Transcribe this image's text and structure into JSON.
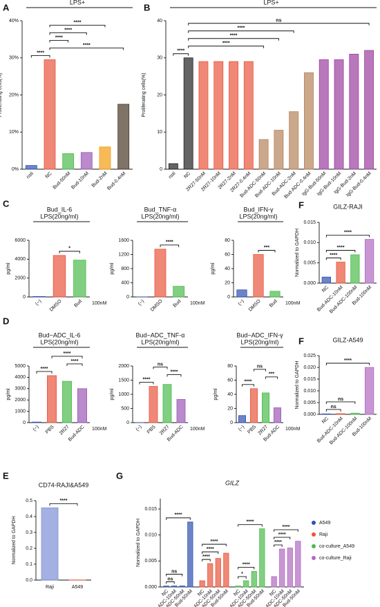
{
  "chart_data": [
    {
      "type": "bar",
      "panel": "A",
      "subtitle": "LPS+",
      "ylabel": "Proliferating cells(%)",
      "categories": [
        "nsti",
        "NC",
        "Bud-50nM",
        "Bud-10nM",
        "Bud-2nM",
        "Bud-0.4nM"
      ],
      "values": [
        1,
        29.5,
        4.2,
        4.5,
        6,
        17.5
      ],
      "colors": [
        "#3050b0",
        "#e8553c",
        "#4cbb4c",
        "#9b59b6",
        "#f39c12",
        "#4a3728"
      ],
      "ylim": [
        0,
        40
      ],
      "yticks": [
        {
          "value": 0,
          "label": "0%"
        },
        {
          "value": 10,
          "label": "10%"
        },
        {
          "value": 20,
          "label": "20%"
        },
        {
          "value": 30,
          "label": "30%"
        },
        {
          "value": 40,
          "label": "40%"
        }
      ],
      "brackets": [
        {
          "label": "****",
          "from": "nsti",
          "to": "NC"
        },
        {
          "label": "****",
          "from": "NC",
          "to": "Bud-0.4nM"
        },
        {
          "label": "****",
          "from": "NC",
          "to": "Bud-50nM"
        },
        {
          "label": "****",
          "from": "NC",
          "to": "Bud-10nM"
        },
        {
          "label": "****",
          "from": "NC",
          "to": "Bud-2nM"
        }
      ]
    },
    {
      "type": "bar",
      "panel": "B",
      "subtitle": "LPS+",
      "ylabel": "Proliferating cells(%)",
      "categories": [
        "nsti",
        "NC",
        "2R27-50nM",
        "2R27-10nM",
        "2R27-2nM",
        "2R27-0.4nM",
        "Bud-ADC-50nM",
        "Bud-ADC-10nM",
        "Bud-ADC-2nM",
        "Bud-ADC-0.4nM",
        "IgG-Bud-50nM",
        "IgG-Bud-10nM",
        "IgG-Bud-2nM",
        "IgG-Bud-0.4nM"
      ],
      "values": [
        1.5,
        30,
        29,
        29,
        29,
        29,
        8,
        10.5,
        15.5,
        26,
        29.5,
        29.5,
        31,
        32
      ],
      "colors": [
        "#222222",
        "#222222",
        "#e8553c",
        "#e8553c",
        "#e8553c",
        "#e8553c",
        "#b5835a",
        "#b5835a",
        "#b5835a",
        "#b5835a",
        "#9b3fa0",
        "#9b3fa0",
        "#9b3fa0",
        "#9b3fa0"
      ],
      "ylim": [
        0,
        40
      ],
      "yticks": [
        0,
        10,
        20,
        30,
        40
      ],
      "brackets": [
        {
          "label": "****",
          "from": "nsti",
          "to": "NC"
        },
        {
          "label": "****",
          "from": "NC",
          "to": "Bud-ADC-50nM"
        },
        {
          "label": "****",
          "from": "NC",
          "to": "Bud-ADC-10nM"
        },
        {
          "label": "****",
          "from": "NC",
          "to": "Bud-ADC-2nM"
        },
        {
          "label": "ns",
          "from": "NC",
          "to": "IgG-Bud-0.4nM"
        }
      ]
    },
    {
      "type": "bar",
      "panel": "C",
      "title": "Bud_IL-6",
      "subtitle": "LPS(20ng/ml)",
      "ylabel": "pg/ml",
      "note": "100nM",
      "categories": [
        "(−)",
        "DMSO",
        "Bud"
      ],
      "values": [
        50,
        4400,
        3900
      ],
      "colors": [
        "#3050b0",
        "#e8553c",
        "#4cbb4c"
      ],
      "ylim": [
        0,
        6000
      ],
      "yticks": [
        0,
        2000,
        4000,
        6000
      ],
      "brackets": [
        {
          "label": "*",
          "from": "DMSO",
          "to": "Bud"
        }
      ]
    },
    {
      "type": "bar",
      "title": "Bud_TNF-α",
      "subtitle": "LPS(20ng/ml)",
      "ylabel": "pg/ml",
      "note": "100nM",
      "categories": [
        "(−)",
        "DMSO",
        "Bud"
      ],
      "values": [
        0,
        1350,
        300
      ],
      "colors": [
        "#3050b0",
        "#e8553c",
        "#4cbb4c"
      ],
      "ylim": [
        0,
        1600
      ],
      "yticks": [
        0,
        400,
        800,
        1200,
        1600
      ],
      "brackets": [
        {
          "label": "****",
          "from": "DMSO",
          "to": "Bud"
        }
      ]
    },
    {
      "type": "bar",
      "title": "Bud_IFN-γ",
      "subtitle": "LPS(20ng/ml)",
      "ylabel": "pg/ml",
      "note": "100nM",
      "categories": [
        "(−)",
        "DMSO",
        "Bud"
      ],
      "values": [
        10,
        60,
        8
      ],
      "colors": [
        "#3050b0",
        "#e8553c",
        "#4cbb4c"
      ],
      "ylim": [
        0,
        80
      ],
      "yticks": [
        0,
        20,
        40,
        60,
        80
      ],
      "brackets": [
        {
          "label": "***",
          "from": "DMSO",
          "to": "Bud"
        }
      ]
    },
    {
      "type": "bar",
      "panel": "F",
      "title": "GILZ-RAJI",
      "ylabel": "Normalized to GAPDH",
      "categories": [
        "NC",
        "Bud-ADC-10nM",
        "Bud-ADC-100nM",
        "Bud-100nM"
      ],
      "values": [
        0.0015,
        0.0052,
        0.007,
        0.0108
      ],
      "colors": [
        "#3050b0",
        "#e8553c",
        "#4cbb4c",
        "#b06ac0"
      ],
      "ylim": [
        0,
        0.015
      ],
      "yticks": [
        {
          "value": 0,
          "label": "0.000"
        },
        {
          "value": 0.005,
          "label": "0.005"
        },
        {
          "value": 0.01,
          "label": "0.010"
        },
        {
          "value": 0.015,
          "label": "0.015"
        }
      ],
      "brackets": [
        {
          "label": "****",
          "from": "NC",
          "to": "Bud-ADC-10nM"
        },
        {
          "label": "****",
          "from": "NC",
          "to": "Bud-ADC-100nM"
        },
        {
          "label": "****",
          "from": "NC",
          "to": "Bud-100nM"
        }
      ]
    },
    {
      "type": "bar",
      "panel": "D",
      "title": "Bud−ADC_IL-6",
      "subtitle": "LPS(20ng/ml)",
      "ylabel": "pg/ml",
      "note": "100nM",
      "categories": [
        "(−)",
        "PBS",
        "2R27",
        "Bud-ADC"
      ],
      "values": [
        50,
        4150,
        3650,
        3000
      ],
      "colors": [
        "#3050b0",
        "#e8553c",
        "#4cbb4c",
        "#9b59b6"
      ],
      "ylim": [
        0,
        5000
      ],
      "yticks": [
        0,
        1000,
        2000,
        3000,
        4000,
        5000
      ],
      "brackets": [
        {
          "label": "****",
          "from": "(−)",
          "to": "PBS"
        },
        {
          "label": "****",
          "from": "2R27",
          "to": "Bud-ADC"
        },
        {
          "label": "****",
          "from": "PBS",
          "to": "Bud-ADC"
        }
      ]
    },
    {
      "type": "bar",
      "title": "Bud−ADC_TNF-α",
      "subtitle": "LPS(20ng/ml)",
      "ylabel": "pg/ml",
      "note": "100nM",
      "categories": [
        "(−)",
        "PBS",
        "2R27",
        "Bud-ADC"
      ],
      "values": [
        0,
        1280,
        1350,
        820
      ],
      "colors": [
        "#3050b0",
        "#e8553c",
        "#4cbb4c",
        "#9b59b6"
      ],
      "ylim": [
        0,
        2000
      ],
      "yticks": [
        0,
        500,
        1000,
        1500,
        2000
      ],
      "brackets": [
        {
          "label": "****",
          "from": "(−)",
          "to": "PBS"
        },
        {
          "label": "****",
          "from": "2R27",
          "to": "Bud-ADC"
        },
        {
          "label": "ns",
          "from": "PBS",
          "to": "2R27"
        }
      ]
    },
    {
      "type": "bar",
      "title": "Bud−ADC_IFN-γ",
      "subtitle": "LPS(20ng/ml)",
      "ylabel": "pg/ml",
      "note": "100nM",
      "categories": [
        "(−)",
        "PBS",
        "2R27",
        "Bud-ADC"
      ],
      "values": [
        10,
        48,
        42,
        21
      ],
      "colors": [
        "#3050b0",
        "#e8553c",
        "#4cbb4c",
        "#9b59b6"
      ],
      "ylim": [
        0,
        80
      ],
      "yticks": [
        0,
        20,
        40,
        60,
        80
      ],
      "brackets": [
        {
          "label": "****",
          "from": "(−)",
          "to": "PBS"
        },
        {
          "label": "***",
          "from": "2R27",
          "to": "Bud-ADC"
        },
        {
          "label": "ns",
          "from": "PBS",
          "to": "2R27"
        }
      ]
    },
    {
      "type": "bar",
      "panel": "F",
      "title": "GILZ-A549",
      "ylabel": "Normalized to GAPDH",
      "categories": [
        "NC",
        "Bud-ADC-10nM",
        "Bud-ADC-100nM",
        "Bud-100nM"
      ],
      "values": [
        0.0002,
        0.0003,
        0.0005,
        0.02
      ],
      "colors": [
        "#3050b0",
        "#e8553c",
        "#4cbb4c",
        "#b06ac0"
      ],
      "ylim": [
        0,
        0.025
      ],
      "yticks": [
        {
          "value": 0,
          "label": "0.000"
        },
        {
          "value": 0.005,
          "label": "0.005"
        },
        {
          "value": 0.01,
          "label": "0.010"
        },
        {
          "value": 0.015,
          "label": "0.015"
        },
        {
          "value": 0.02,
          "label": "0.020"
        },
        {
          "value": 0.025,
          "label": "0.025"
        }
      ],
      "brackets": [
        {
          "label": "ns",
          "from": "NC",
          "to": "Bud-ADC-10nM"
        },
        {
          "label": "ns",
          "from": "NC",
          "to": "Bud-ADC-100nM"
        },
        {
          "label": "****",
          "from": "NC",
          "to": "Bud-100nM"
        }
      ]
    },
    {
      "type": "bar",
      "panel": "E",
      "title": "CD74-RAJI&A549",
      "ylabel": "Normalized to GAPDH",
      "categories": [
        "Raji",
        "A549"
      ],
      "values": [
        0.455,
        0.001
      ],
      "colors": [
        "#7f8fd6",
        "#e8553c"
      ],
      "ylim": [
        0,
        0.5
      ],
      "yticks": [
        {
          "value": 0,
          "label": "0.0"
        },
        0.1,
        0.2,
        0.3,
        0.4,
        0.5
      ],
      "brackets": [
        {
          "label": "****",
          "from": "Raji",
          "to": "A549"
        }
      ]
    },
    {
      "type": "grouped_bar",
      "panel": "G",
      "title": "GILZ",
      "ylabel": "Normalized to GAPDH",
      "categories": [
        "NC",
        "Bud-ADC-10nM",
        "Bud-ADC-50nM",
        "Bud-50nM"
      ],
      "ylim": [
        0,
        0.017
      ],
      "yticks": [
        {
          "value": 0,
          "label": "0.000"
        },
        {
          "value": 0.005,
          "label": "0.005"
        },
        {
          "value": 0.01,
          "label": "0.010"
        },
        {
          "value": 0.015,
          "label": "0.015"
        }
      ],
      "series": [
        {
          "name": "A549",
          "color": "#3050b0",
          "values": [
            0.0002,
            0.0002,
            0.0002,
            0.0125
          ],
          "brackets": [
            {
              "label": "ns",
              "from": "NC",
              "to": "Bud-ADC-10nM"
            },
            {
              "label": "ns",
              "from": "NC",
              "to": "Bud-ADC-50nM"
            },
            {
              "label": "****",
              "from": "NC",
              "to": "Bud-50nM"
            }
          ]
        },
        {
          "name": "Raji",
          "color": "#e8553c",
          "values": [
            0.0012,
            0.0045,
            0.0055,
            0.0065
          ],
          "brackets": [
            {
              "label": "****",
              "from": "NC",
              "to": "Bud-ADC-10nM"
            },
            {
              "label": "****",
              "from": "NC",
              "to": "Bud-ADC-50nM"
            },
            {
              "label": "****",
              "from": "NC",
              "to": "Bud-50nM"
            }
          ]
        },
        {
          "name": "co-culture_A549",
          "color": "#4cbb4c",
          "values": [
            0.0002,
            0.0012,
            0.003,
            0.0112
          ],
          "brackets": [
            {
              "label": "*",
              "from": "NC",
              "to": "Bud-ADC-10nM"
            },
            {
              "label": "****",
              "from": "NC",
              "to": "Bud-ADC-50nM"
            },
            {
              "label": "****",
              "from": "NC",
              "to": "Bud-50nM"
            }
          ]
        },
        {
          "name": "co-culture_Raji",
          "color": "#b06ac0",
          "values": [
            0.002,
            0.0073,
            0.0075,
            0.0088
          ],
          "brackets": [
            {
              "label": "****",
              "from": "NC",
              "to": "Bud-ADC-10nM"
            },
            {
              "label": "****",
              "from": "NC",
              "to": "Bud-ADC-50nM"
            },
            {
              "label": "****",
              "from": "NC",
              "to": "Bud-50nM"
            }
          ]
        }
      ]
    }
  ]
}
